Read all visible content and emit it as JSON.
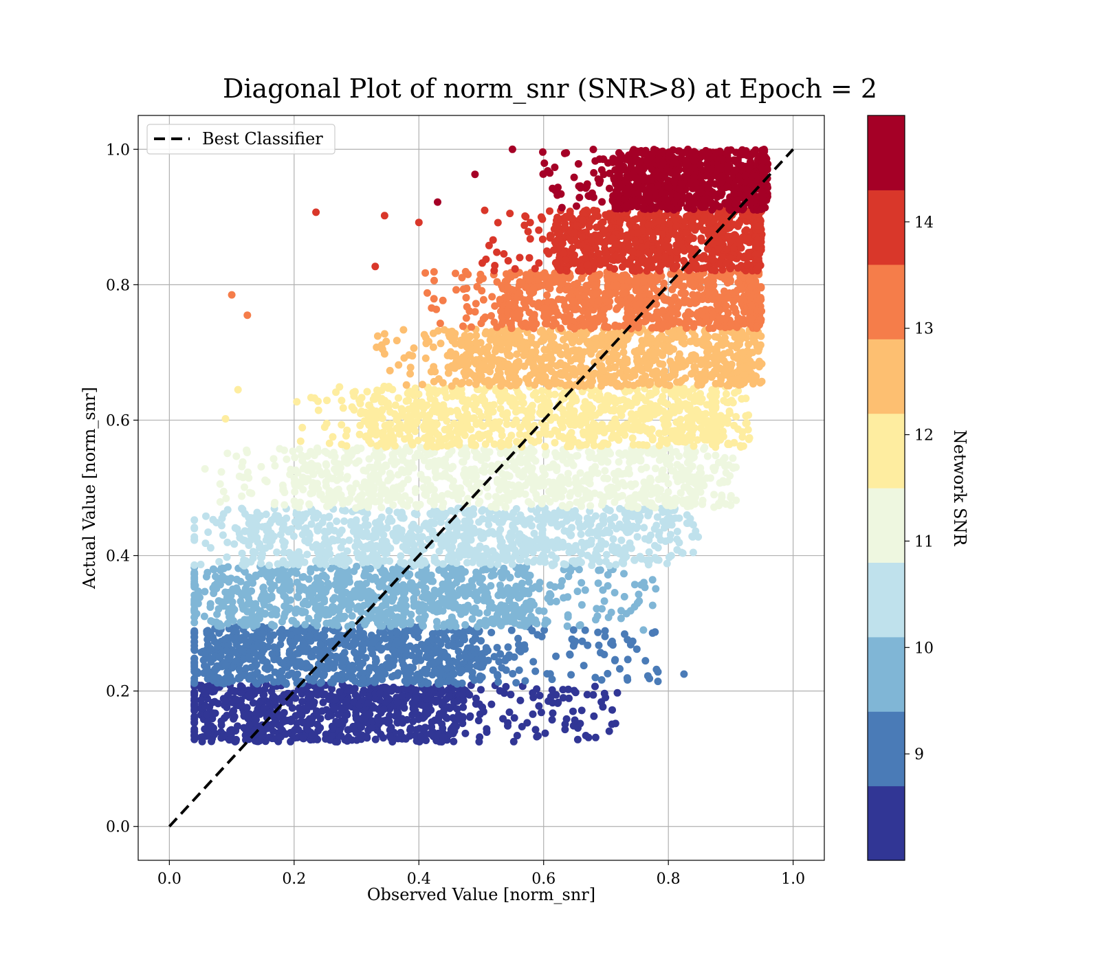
{
  "chart_data": {
    "type": "scatter",
    "title": "Diagonal Plot of norm_snr (SNR>8) at Epoch = 2",
    "xlabel": "Observed Value [norm_snr]",
    "ylabel": "Actual Value [norm_snr]",
    "xlim": [
      -0.05,
      1.05
    ],
    "ylim": [
      -0.05,
      1.05
    ],
    "xticks": [
      "0.0",
      "0.2",
      "0.4",
      "0.6",
      "0.8",
      "1.0"
    ],
    "yticks": [
      "0.0",
      "0.2",
      "0.4",
      "0.6",
      "0.8",
      "1.0"
    ],
    "grid": true,
    "legend": {
      "position": "top-left",
      "entries": [
        "Best Classifier"
      ]
    },
    "reference_line": {
      "name": "Best Classifier",
      "style": "dashed",
      "color": "#000000",
      "points": [
        [
          0.0,
          0.0
        ],
        [
          1.0,
          1.0
        ]
      ]
    },
    "colorbar": {
      "label": "Network SNR",
      "range": [
        8.0,
        15.0
      ],
      "ticks": [
        "9",
        "10",
        "11",
        "12",
        "13",
        "14"
      ],
      "tick_values": [
        9,
        10,
        11,
        12,
        13,
        14
      ],
      "bins": [
        {
          "from": 8.0,
          "to": 8.7,
          "color": "#313695"
        },
        {
          "from": 8.7,
          "to": 9.4,
          "color": "#4a7bb7"
        },
        {
          "from": 9.4,
          "to": 10.1,
          "color": "#80b6d6"
        },
        {
          "from": 10.1,
          "to": 10.8,
          "color": "#bfe1ec"
        },
        {
          "from": 10.8,
          "to": 11.5,
          "color": "#eef7e0"
        },
        {
          "from": 11.5,
          "to": 12.2,
          "color": "#feeda0"
        },
        {
          "from": 12.2,
          "to": 12.9,
          "color": "#fdbf71"
        },
        {
          "from": 12.9,
          "to": 13.6,
          "color": "#f57d4a"
        },
        {
          "from": 13.6,
          "to": 14.3,
          "color": "#d9372a"
        },
        {
          "from": 14.3,
          "to": 15.0,
          "color": "#a50026"
        }
      ]
    },
    "bands": [
      {
        "snr_bin": 0,
        "y_range": [
          0.125,
          0.21
        ],
        "x_dense": [
          0.05,
          0.47
        ],
        "x_sparse_max": 0.72,
        "slope_min": 0.06
      },
      {
        "snr_bin": 1,
        "y_range": [
          0.21,
          0.295
        ],
        "x_dense": [
          0.06,
          0.5
        ],
        "x_sparse_max": 0.79,
        "slope_min": 0.06
      },
      {
        "snr_bin": 2,
        "y_range": [
          0.295,
          0.385
        ],
        "x_dense": [
          0.07,
          0.57
        ],
        "x_sparse_max": 0.79,
        "slope_min": 0.07
      },
      {
        "snr_bin": 3,
        "y_range": [
          0.385,
          0.47
        ],
        "x_dense": [
          0.12,
          0.73
        ],
        "x_sparse_max": 0.85,
        "slope_min": 0.12
      },
      {
        "snr_bin": 4,
        "y_range": [
          0.47,
          0.56
        ],
        "x_dense": [
          0.2,
          0.83
        ],
        "x_sparse_max": 0.91,
        "slope_min": 0.2
      },
      {
        "snr_bin": 5,
        "y_range": [
          0.56,
          0.65
        ],
        "x_dense": [
          0.32,
          0.87
        ],
        "x_sparse_max": 0.93,
        "slope_min": 0.32
      },
      {
        "snr_bin": 6,
        "y_range": [
          0.65,
          0.735
        ],
        "x_dense": [
          0.45,
          0.91
        ],
        "x_sparse_max": 0.95,
        "slope_min": 0.45
      },
      {
        "snr_bin": 7,
        "y_range": [
          0.735,
          0.82
        ],
        "x_dense": [
          0.53,
          0.93
        ],
        "x_sparse_max": 0.95,
        "slope_min": 0.53
      },
      {
        "snr_bin": 8,
        "y_range": [
          0.82,
          0.91
        ],
        "x_dense": [
          0.62,
          0.94
        ],
        "x_sparse_max": 0.95,
        "slope_min": 0.62
      },
      {
        "snr_bin": 9,
        "y_range": [
          0.91,
          1.0
        ],
        "x_dense": [
          0.71,
          0.95
        ],
        "x_sparse_max": 0.96,
        "slope_min": 0.71
      }
    ],
    "outliers": [
      {
        "x": 0.1,
        "y": 0.785,
        "snr_bin": 7
      },
      {
        "x": 0.125,
        "y": 0.755,
        "snr_bin": 7
      },
      {
        "x": 0.235,
        "y": 0.907,
        "snr_bin": 8
      },
      {
        "x": 0.345,
        "y": 0.902,
        "snr_bin": 8
      },
      {
        "x": 0.43,
        "y": 0.922,
        "snr_bin": 9
      },
      {
        "x": 0.4,
        "y": 0.892,
        "snr_bin": 8
      },
      {
        "x": 0.33,
        "y": 0.827,
        "snr_bin": 8
      },
      {
        "x": 0.09,
        "y": 0.602,
        "snr_bin": 5
      },
      {
        "x": 0.11,
        "y": 0.645,
        "snr_bin": 5
      },
      {
        "x": 0.057,
        "y": 0.528,
        "snr_bin": 4
      },
      {
        "x": 0.825,
        "y": 0.225,
        "snr_bin": 1
      },
      {
        "x": 0.76,
        "y": 0.29,
        "snr_bin": 2
      },
      {
        "x": 0.71,
        "y": 0.172,
        "snr_bin": 0
      },
      {
        "x": 0.65,
        "y": 0.157,
        "snr_bin": 0
      },
      {
        "x": 0.49,
        "y": 0.963,
        "snr_bin": 9
      },
      {
        "x": 0.55,
        "y": 1.0,
        "snr_bin": 9
      }
    ]
  }
}
